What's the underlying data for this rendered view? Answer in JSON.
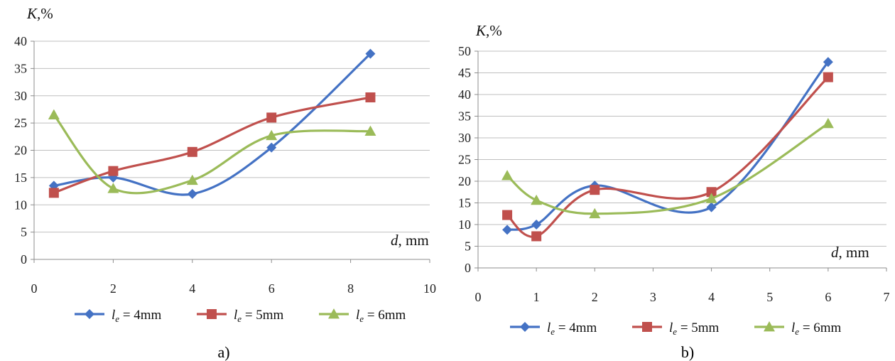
{
  "colors": {
    "series1": "#4472C4",
    "series2": "#C0504D",
    "series3": "#9BBB59"
  },
  "chart_data": [
    {
      "type": "line",
      "caption": "a)",
      "ylabel": {
        "italic": "K",
        "rest": ",%"
      },
      "xlabel": {
        "italic": "d",
        "rest": ", mm"
      },
      "xlim": [
        0,
        10
      ],
      "ylim": [
        0,
        40
      ],
      "xticks": [
        0,
        2,
        4,
        6,
        8,
        10
      ],
      "yticks": [
        0,
        5,
        10,
        15,
        20,
        25,
        30,
        35,
        40
      ],
      "grid": "horizontal",
      "legend": "bottom",
      "series": [
        {
          "label_base": "l",
          "label_sub": "e",
          "label_rest": " = 4mm",
          "marker": "diamond",
          "color_key": "series1",
          "x": [
            0.5,
            2,
            4,
            6,
            8.5
          ],
          "y": [
            13.5,
            15,
            12,
            20.5,
            37.7
          ]
        },
        {
          "label_base": "l",
          "label_sub": "e",
          "label_rest": " = 5mm",
          "marker": "square",
          "color_key": "series2",
          "x": [
            0.5,
            2,
            4,
            6,
            8.5
          ],
          "y": [
            12.2,
            16.2,
            19.7,
            26,
            29.7
          ]
        },
        {
          "label_base": "l",
          "label_sub": "e",
          "label_rest": " = 6mm",
          "marker": "triangle",
          "color_key": "series3",
          "x": [
            0.5,
            2,
            4,
            6,
            8.5
          ],
          "y": [
            26.5,
            13,
            14.5,
            22.7,
            23.5
          ]
        }
      ]
    },
    {
      "type": "line",
      "caption": "b)",
      "ylabel": {
        "italic": "K",
        "rest": ",%"
      },
      "xlabel": {
        "italic": "d",
        "rest": ", mm"
      },
      "xlim": [
        0,
        7
      ],
      "ylim": [
        0,
        50
      ],
      "xticks": [
        0,
        1,
        2,
        3,
        4,
        5,
        6,
        7
      ],
      "yticks": [
        0,
        5,
        10,
        15,
        20,
        25,
        30,
        35,
        40,
        45,
        50
      ],
      "grid": "horizontal",
      "legend": "bottom",
      "series": [
        {
          "label_base": "l",
          "label_sub": "e",
          "label_rest": " = 4mm",
          "marker": "diamond",
          "color_key": "series1",
          "x": [
            0.5,
            1,
            2,
            4,
            6
          ],
          "y": [
            8.8,
            10,
            19,
            14,
            47.5
          ]
        },
        {
          "label_base": "l",
          "label_sub": "e",
          "label_rest": " = 5mm",
          "marker": "square",
          "color_key": "series2",
          "x": [
            0.5,
            1,
            2,
            4,
            6
          ],
          "y": [
            12.2,
            7.3,
            18,
            17.5,
            44
          ]
        },
        {
          "label_base": "l",
          "label_sub": "e",
          "label_rest": " = 6mm",
          "marker": "triangle",
          "color_key": "series3",
          "x": [
            0.5,
            1,
            2,
            4,
            6
          ],
          "y": [
            21.3,
            15.6,
            12.5,
            16,
            33.3
          ]
        }
      ]
    }
  ]
}
